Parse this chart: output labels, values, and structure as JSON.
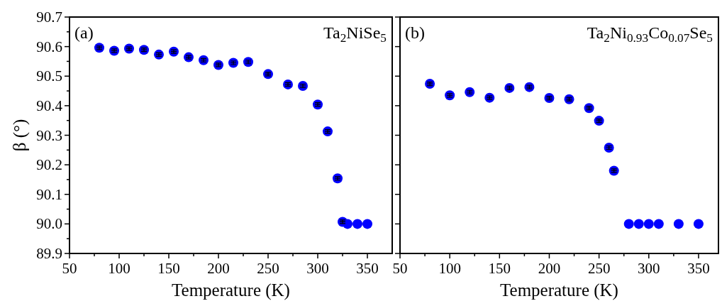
{
  "chart_data": [
    {
      "type": "scatter",
      "xlabel": "Temperature (K)",
      "ylabel": "β (°)",
      "annotations": [
        "(a)",
        "Ta$_{2}$NiSe$_{5}$"
      ],
      "marker": "circle",
      "xlim": [
        50,
        375
      ],
      "ylim": [
        89.9,
        90.7
      ],
      "xticks": [
        50,
        {
          "value": 75,
          "label": null
        },
        100,
        {
          "value": 125,
          "label": null
        },
        150,
        {
          "value": 175,
          "label": null
        },
        200,
        {
          "value": 225,
          "label": null
        },
        250,
        {
          "value": 275,
          "label": null
        },
        300,
        {
          "value": 325,
          "label": null
        },
        350
      ],
      "yticks": [
        {
          "value": 89.9,
          "label": "89.9"
        },
        {
          "value": 89.95,
          "label": null
        },
        {
          "value": 90.0,
          "label": "90.0"
        },
        {
          "value": 90.05,
          "label": null
        },
        90.1,
        {
          "value": 90.15,
          "label": null
        },
        90.2,
        {
          "value": 90.25,
          "label": null
        },
        90.3,
        {
          "value": 90.35,
          "label": null
        },
        90.4,
        {
          "value": 90.45,
          "label": null
        },
        90.5,
        {
          "value": 90.55,
          "label": null
        },
        90.6,
        {
          "value": 90.65,
          "label": null
        },
        90.7
      ],
      "series": [
        {
          "color": "#0000ff",
          "x": [
            80,
            95,
            110,
            125,
            140,
            155,
            170,
            185,
            200,
            215,
            230,
            250,
            270,
            285,
            300,
            310,
            320,
            325,
            330,
            340,
            350
          ],
          "values": [
            90.596,
            90.586,
            90.593,
            90.589,
            90.573,
            90.583,
            90.564,
            90.554,
            90.538,
            90.545,
            90.548,
            90.507,
            90.472,
            90.467,
            90.404,
            90.313,
            90.154,
            90.007,
            90.0,
            90.0,
            90.0
          ],
          "errors": [
            0.006,
            0.006,
            0.006,
            0.006,
            0.006,
            0.006,
            0.006,
            0.006,
            0.006,
            0.006,
            0.006,
            0.006,
            0.006,
            0.006,
            0.006,
            0.006,
            0.006,
            0.006,
            null,
            null,
            null
          ]
        }
      ]
    },
    {
      "type": "scatter",
      "xlabel": "Temperature (K)",
      "annotations": [
        "(b)",
        "Ta$_{2}$Ni$_{0.93}$Co$_{0.07}$Se$_{5}$"
      ],
      "marker": "circle",
      "tick_labels": "x",
      "xlim": [
        50,
        370
      ],
      "ylim": [
        89.9,
        90.7
      ],
      "xticks": [
        50,
        {
          "value": 75,
          "label": null
        },
        100,
        {
          "value": 125,
          "label": null
        },
        150,
        {
          "value": 175,
          "label": null
        },
        200,
        {
          "value": 225,
          "label": null
        },
        250,
        {
          "value": 275,
          "label": null
        },
        300,
        {
          "value": 325,
          "label": null
        },
        350
      ],
      "yticks": [
        89.9,
        90,
        90.1,
        90.2,
        90.3,
        90.4,
        90.5,
        90.6,
        90.7
      ],
      "series": [
        {
          "color": "#0000ff",
          "x": [
            80,
            100,
            120,
            140,
            160,
            180,
            200,
            220,
            240,
            250,
            260,
            265,
            280,
            290,
            300,
            310,
            330,
            350
          ],
          "values": [
            90.474,
            90.435,
            90.446,
            90.427,
            90.46,
            90.463,
            90.426,
            90.422,
            90.392,
            90.349,
            90.258,
            90.18,
            90.0,
            90.0,
            90.0,
            90.0,
            90.0,
            90.0
          ],
          "errors": [
            0.006,
            0.006,
            0.006,
            0.006,
            0.006,
            0.006,
            0.006,
            0.006,
            0.006,
            0.006,
            0.006,
            0.006,
            null,
            null,
            null,
            null,
            null,
            null
          ]
        }
      ]
    }
  ]
}
